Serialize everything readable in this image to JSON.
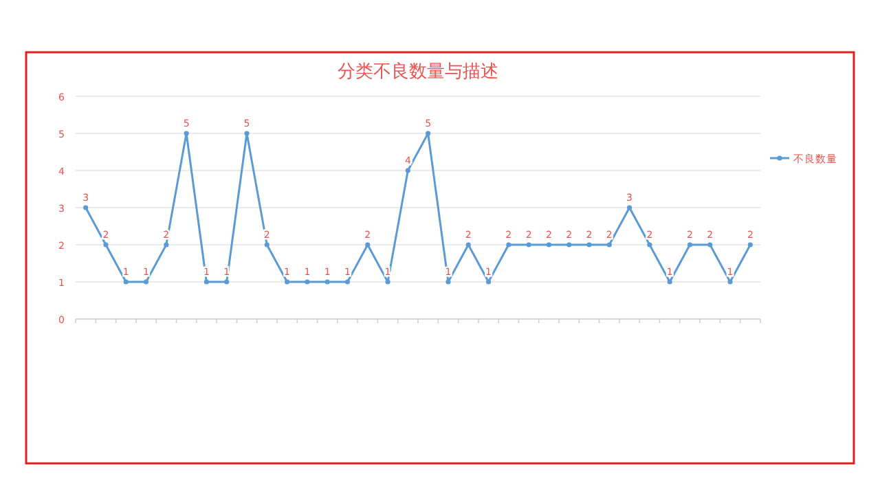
{
  "chart_data": {
    "type": "line",
    "title": "分类不良数量与描述",
    "categories": [
      null,
      null,
      null,
      null,
      null,
      null,
      null,
      null,
      null,
      null,
      null,
      null,
      null,
      null,
      null,
      null,
      null,
      null,
      null,
      null,
      null,
      null,
      null,
      null,
      null,
      null,
      null,
      null,
      null,
      null,
      null,
      null,
      null,
      null
    ],
    "series": [
      {
        "name": "不良数量",
        "color": "#5b9bd5",
        "values": [
          3,
          2,
          1,
          1,
          2,
          5,
          1,
          1,
          5,
          2,
          1,
          1,
          1,
          1,
          2,
          1,
          4,
          5,
          1,
          2,
          1,
          2,
          2,
          2,
          2,
          2,
          2,
          3,
          2,
          1,
          2,
          2,
          1,
          2
        ]
      }
    ],
    "ylim": [
      0,
      6
    ],
    "yticks": [
      0,
      1,
      2,
      3,
      4,
      5,
      6
    ],
    "grid": "y",
    "legend": "right",
    "marker": "circle",
    "data_labels": true
  }
}
